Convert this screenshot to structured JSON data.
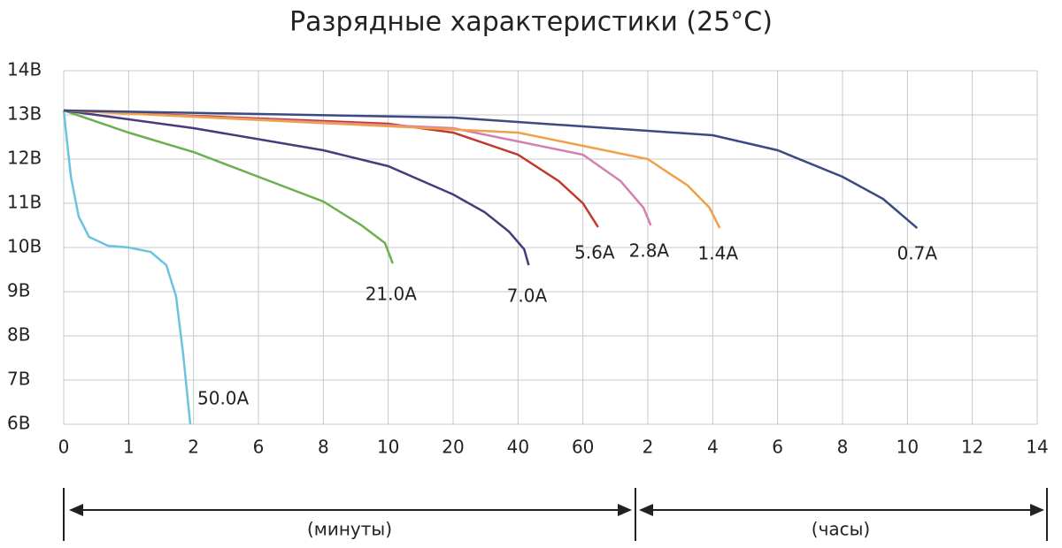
{
  "chart_data": {
    "type": "line",
    "title": "Разрядные характеристики (25°C)",
    "xlim": [
      0,
      840
    ],
    "xticks": [
      0,
      1,
      2,
      6,
      8,
      10,
      20,
      40,
      60,
      {
        "value": 120,
        "label": "2"
      },
      {
        "value": 240,
        "label": "4"
      },
      {
        "value": 360,
        "label": "6"
      },
      {
        "value": 480,
        "label": "8"
      },
      {
        "value": 600,
        "label": "10"
      },
      {
        "value": 720,
        "label": "12"
      },
      {
        "value": 840,
        "label": "14"
      }
    ],
    "ylim": [
      6,
      14
    ],
    "yticks": [
      {
        "value": 6,
        "label": "6В"
      },
      {
        "value": 7,
        "label": "7В"
      },
      {
        "value": 8,
        "label": "8В"
      },
      {
        "value": 9,
        "label": "9В"
      },
      {
        "value": 10,
        "label": "10В"
      },
      {
        "value": 11,
        "label": "11В"
      },
      {
        "value": 12,
        "label": "12В"
      },
      {
        "value": 13,
        "label": "13В"
      },
      {
        "value": 14,
        "label": "14В"
      }
    ],
    "grid": true,
    "annotations": [
      "(минуты)",
      "(часы)"
    ],
    "series": [
      {
        "name": "50.0A",
        "color": "#6cc3e0",
        "x": [
          0,
          0.11,
          0.23,
          0.39,
          0.68,
          1.0,
          1.34,
          1.58,
          1.73,
          1.84,
          1.95
        ],
        "values": [
          13.1,
          11.6,
          10.7,
          10.24,
          10.04,
          10.0,
          9.9,
          9.6,
          8.9,
          7.6,
          6.0
        ]
      },
      {
        "name": "21.0A",
        "color": "#6ab04c",
        "x": [
          0,
          1,
          2,
          6,
          8,
          9.18,
          9.9,
          10.7
        ],
        "values": [
          13.1,
          12.6,
          12.16,
          11.6,
          11.04,
          10.5,
          10.1,
          9.64
        ]
      },
      {
        "name": "7.0A",
        "color": "#4a3a7a",
        "x": [
          0,
          2,
          8,
          10,
          20,
          29.7,
          37.2,
          41.9,
          43.3
        ],
        "values": [
          13.1,
          12.7,
          12.2,
          11.84,
          11.2,
          10.8,
          10.36,
          9.96,
          9.6
        ]
      },
      {
        "name": "5.6A",
        "color": "#c0392b",
        "x": [
          0,
          10,
          20,
          40,
          52.6,
          60,
          74
        ],
        "values": [
          13.1,
          12.8,
          12.6,
          12.1,
          11.5,
          11.0,
          10.46
        ]
      },
      {
        "name": "2.8A",
        "color": "#d47fb0",
        "x": [
          0,
          20,
          40,
          60,
          95,
          116,
          125.5
        ],
        "values": [
          13.1,
          12.7,
          12.4,
          12.1,
          11.5,
          10.9,
          10.5
        ]
      },
      {
        "name": "1.4A",
        "color": "#f0a04b",
        "x": [
          0,
          40,
          60,
          120,
          194,
          234,
          253
        ],
        "values": [
          13.1,
          12.6,
          12.3,
          12.0,
          11.4,
          10.9,
          10.44
        ]
      },
      {
        "name": "0.7A",
        "color": "#3b4a80",
        "x": [
          0,
          20,
          60,
          240,
          360,
          480,
          555,
          618
        ],
        "values": [
          13.1,
          12.94,
          12.74,
          12.54,
          12.2,
          11.6,
          11.1,
          10.44
        ]
      }
    ]
  }
}
